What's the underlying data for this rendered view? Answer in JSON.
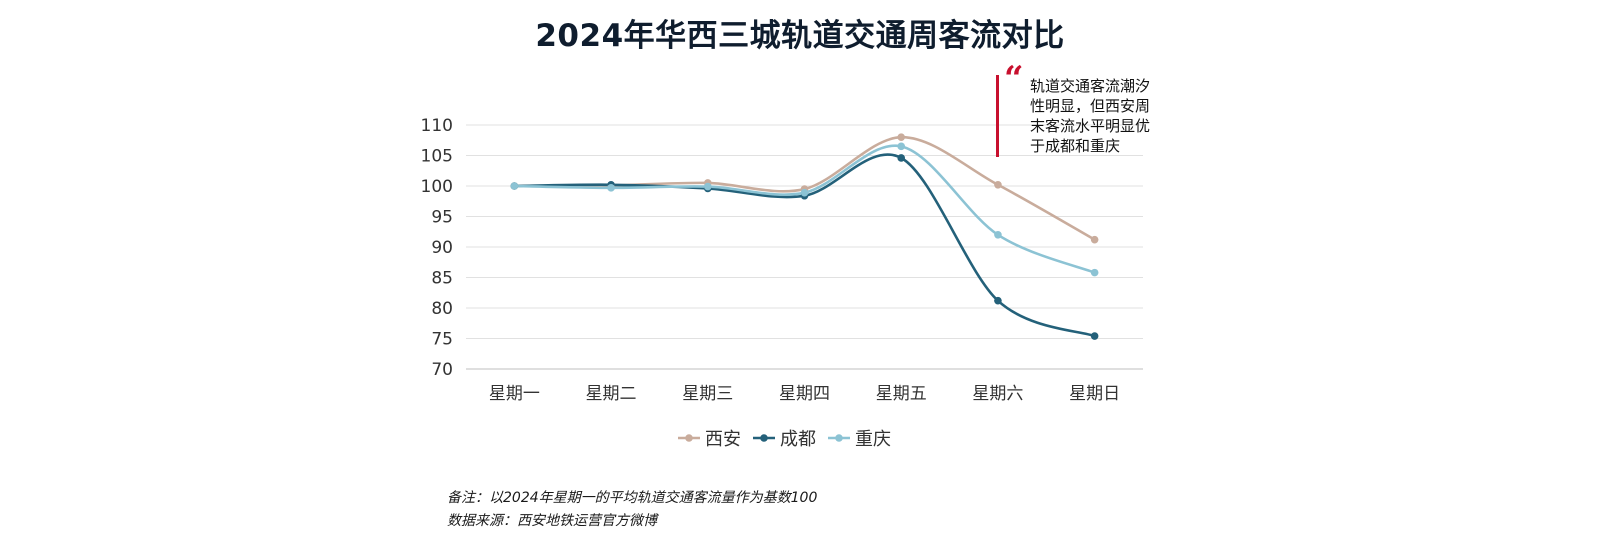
{
  "chart_data": {
    "type": "line",
    "title": "2024年华西三城轨道交通周客流对比",
    "categories": [
      "星期一",
      "星期二",
      "星期三",
      "星期四",
      "星期五",
      "星期六",
      "星期日"
    ],
    "series": [
      {
        "name": "西安",
        "color": "#c9ac9c",
        "values": [
          100,
          100.1,
          100.5,
          99.5,
          108.0,
          100.2,
          91.2
        ]
      },
      {
        "name": "成都",
        "color": "#24617a",
        "values": [
          100,
          100.2,
          99.6,
          98.4,
          104.6,
          81.2,
          75.4
        ]
      },
      {
        "name": "重庆",
        "color": "#8cc3d4",
        "values": [
          100,
          99.7,
          99.9,
          98.9,
          106.5,
          92.0,
          85.8
        ]
      }
    ],
    "ylim": [
      70,
      110
    ],
    "yticks": [
      70,
      75,
      80,
      85,
      90,
      95,
      100,
      105,
      110
    ],
    "grid": true,
    "legend_position": "bottom",
    "annotation": "轨道交通客流潮汐性明显，但西安周末客流水平明显优于成都和重庆"
  },
  "notes": {
    "remark": "备注：以2024年星期一的平均轨道交通客流量作为基数100",
    "source": "数据来源：西安地铁运营官方微博"
  }
}
